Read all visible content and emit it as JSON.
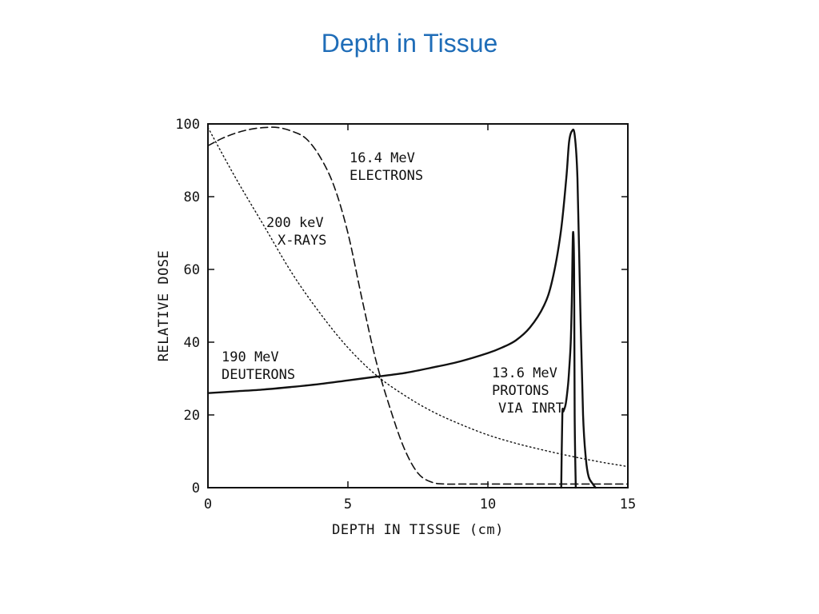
{
  "slide": {
    "title": "Depth in Tissue"
  },
  "chart_data": {
    "type": "line",
    "xlabel": "DEPTH IN TISSUE (cm)",
    "ylabel": "RELATIVE DOSE",
    "xlim": [
      0,
      15
    ],
    "ylim": [
      0,
      100
    ],
    "xticks": [
      0,
      5,
      10,
      15
    ],
    "yticks": [
      0,
      20,
      40,
      60,
      80,
      100
    ],
    "grid": false,
    "legend": "none",
    "series": [
      {
        "name": "190 MeV DEUTERONS",
        "label_lines": [
          "190 MeV",
          "DEUTERONS"
        ],
        "style": "solid",
        "x": [
          0,
          1,
          2,
          3,
          4,
          5,
          6,
          7,
          8,
          9,
          10,
          10.5,
          11,
          11.5,
          12,
          12.3,
          12.6,
          12.8,
          12.9,
          13.0,
          13.1,
          13.2,
          13.3,
          13.4,
          13.5,
          13.6,
          13.75,
          13.85
        ],
        "y": [
          26,
          26.5,
          27,
          27.7,
          28.5,
          29.5,
          30.5,
          31.5,
          33,
          34.7,
          37,
          38.5,
          40.5,
          44,
          50,
          57,
          70,
          85,
          95,
          98,
          97,
          85,
          50,
          20,
          8,
          3,
          1,
          0
        ]
      },
      {
        "name": "13.6 MeV PROTONS VIA INRT",
        "label_lines": [
          "13.6 MeV",
          "PROTONS",
          "VIA INRT"
        ],
        "style": "solid",
        "x": [
          12.62,
          12.66,
          12.7,
          12.78,
          12.86,
          12.9,
          12.96,
          13.0,
          13.04,
          13.08,
          13.1,
          13.14
        ],
        "y": [
          0,
          20,
          21,
          23,
          28,
          32,
          40,
          52,
          70,
          60,
          20,
          0
        ]
      },
      {
        "name": "16.4 MeV ELECTRONS",
        "label_lines": [
          "16.4 MeV",
          "ELECTRONS"
        ],
        "style": "dashed",
        "x": [
          0,
          0.5,
          1,
          1.5,
          2,
          2.5,
          3,
          3.5,
          4,
          4.5,
          5,
          5.5,
          6,
          6.5,
          7,
          7.5,
          8,
          8.5,
          9,
          10,
          12,
          15
        ],
        "y": [
          94,
          96,
          97.5,
          98.5,
          99,
          99,
          98,
          96,
          91,
          83,
          70,
          52,
          35,
          22,
          11,
          4,
          1.5,
          1,
          1,
          1,
          1,
          1
        ]
      },
      {
        "name": "200 keV X-RAYS",
        "label_lines": [
          "200 keV",
          "X-RAYS"
        ],
        "style": "dotted",
        "x": [
          0,
          1,
          2,
          3,
          4,
          5,
          6,
          7,
          8,
          9,
          10,
          11,
          12,
          13,
          14,
          15
        ],
        "y": [
          99,
          85,
          72,
          59,
          48,
          38.5,
          31,
          25.5,
          21,
          17.5,
          14.5,
          12.2,
          10.3,
          8.6,
          7.1,
          5.8
        ]
      }
    ]
  }
}
